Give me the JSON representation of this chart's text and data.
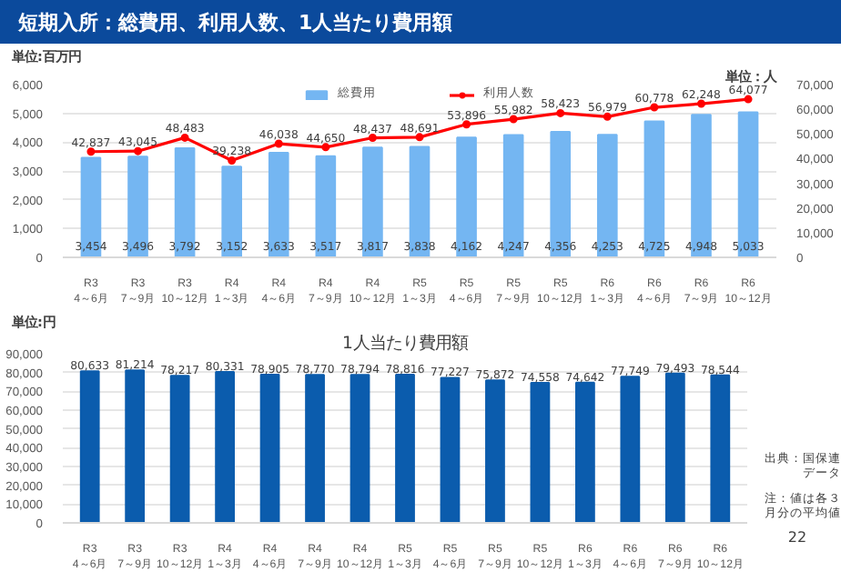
{
  "chart_data": [
    {
      "type": "bar",
      "title": "短期入所：総費用、利用人数、1人当たり費用額",
      "ylabel": "単位:百万円",
      "y2label": "単位：人",
      "categories": [
        "R3\n4～6月",
        "R3\n7～9月",
        "R3\n10～12月",
        "R4\n1～3月",
        "R4\n4～6月",
        "R4\n7～9月",
        "R4\n10～12月",
        "R5\n1～3月",
        "R5\n4～6月",
        "R5\n7～9月",
        "R5\n10～12月",
        "R6\n1～3月",
        "R6\n4～6月",
        "R6\n7～9月",
        "R6\n10～12月"
      ],
      "series": [
        {
          "name": "総費用",
          "type": "bar",
          "color": "#74b6f2",
          "values": [
            3454,
            3496,
            3792,
            3152,
            3633,
            3517,
            3817,
            3838,
            4162,
            4247,
            4356,
            4253,
            4725,
            4948,
            5033
          ],
          "value_labels": [
            "3,454",
            "3,496",
            "3,792",
            "3,152",
            "3,633",
            "3,517",
            "3,817",
            "3,838",
            "4,162",
            "4,247",
            "4,356",
            "4,253",
            "4,725",
            "4,948",
            "5,033"
          ]
        },
        {
          "name": "利用人数",
          "type": "line",
          "axis": "y2",
          "color": "#ff0000",
          "values": [
            42837,
            43045,
            48483,
            39238,
            46038,
            44650,
            48437,
            48691,
            53896,
            55982,
            58423,
            56979,
            60778,
            62248,
            64077
          ],
          "value_labels": [
            "42,837",
            "43,045",
            "48,483",
            "39,238",
            "46,038",
            "44,650",
            "48,437",
            "48,691",
            "53,896",
            "55,982",
            "58,423",
            "56,979",
            "60,778",
            "62,248",
            "64,077"
          ]
        }
      ],
      "ylim": [
        0,
        6000
      ],
      "yticks": [
        0,
        {
          "value": 1000,
          "label": "1,000"
        },
        {
          "value": 2000,
          "label": "2,000"
        },
        {
          "value": 3000,
          "label": "3,000"
        },
        {
          "value": 4000,
          "label": "4,000"
        },
        {
          "value": 5000,
          "label": "5,000"
        },
        {
          "value": 6000,
          "label": "6,000"
        }
      ],
      "y2lim": [
        0,
        70000
      ],
      "y2ticks": [
        0,
        {
          "value": 10000,
          "label": "10,000"
        },
        {
          "value": 20000,
          "label": "20,000"
        },
        {
          "value": 30000,
          "label": "30,000"
        },
        {
          "value": 40000,
          "label": "40,000"
        },
        {
          "value": 50000,
          "label": "50,000"
        },
        {
          "value": 60000,
          "label": "60,000"
        },
        {
          "value": 70000,
          "label": "70,000"
        }
      ],
      "grid": "y",
      "legend": "top",
      "marker": "circle"
    },
    {
      "type": "bar",
      "title": "1人当たり費用額",
      "ylabel": "単位:円",
      "categories": [
        "R3\n4～6月",
        "R3\n7～9月",
        "R3\n10～12月",
        "R4\n1～3月",
        "R4\n4～6月",
        "R4\n7～9月",
        "R4\n10～12月",
        "R5\n1～3月",
        "R5\n4～6月",
        "R5\n7～9月",
        "R5\n10～12月",
        "R6\n1～3月",
        "R6\n4～6月",
        "R6\n7～9月",
        "R6\n10～12月"
      ],
      "series": [
        {
          "color": "#0b5cad",
          "values": [
            80633,
            81214,
            78217,
            80331,
            78905,
            78770,
            78794,
            78816,
            77227,
            75872,
            74558,
            74642,
            77749,
            79493,
            78544
          ],
          "value_labels": [
            "80,633",
            "81,214",
            "78,217",
            "80,331",
            "78,905",
            "78,770",
            "78,794",
            "78,816",
            "77,227",
            "75,872",
            "74,558",
            "74,642",
            "77,749",
            "79,493",
            "78,544"
          ]
        }
      ],
      "ylim": [
        0,
        90000
      ],
      "yticks": [
        0,
        {
          "value": 10000,
          "label": "10,000"
        },
        {
          "value": 20000,
          "label": "20,000"
        },
        {
          "value": 30000,
          "label": "30,000"
        },
        {
          "value": 40000,
          "label": "40,000"
        },
        {
          "value": 50000,
          "label": "50,000"
        },
        {
          "value": 60000,
          "label": "60,000"
        },
        {
          "value": 70000,
          "label": "70,000"
        },
        {
          "value": 80000,
          "label": "80,000"
        },
        {
          "value": 90000,
          "label": "90,000"
        }
      ],
      "grid": "y",
      "annotations": [
        "出典：国保連データ",
        "注：値は各３月分の平均値",
        "22"
      ]
    }
  ]
}
